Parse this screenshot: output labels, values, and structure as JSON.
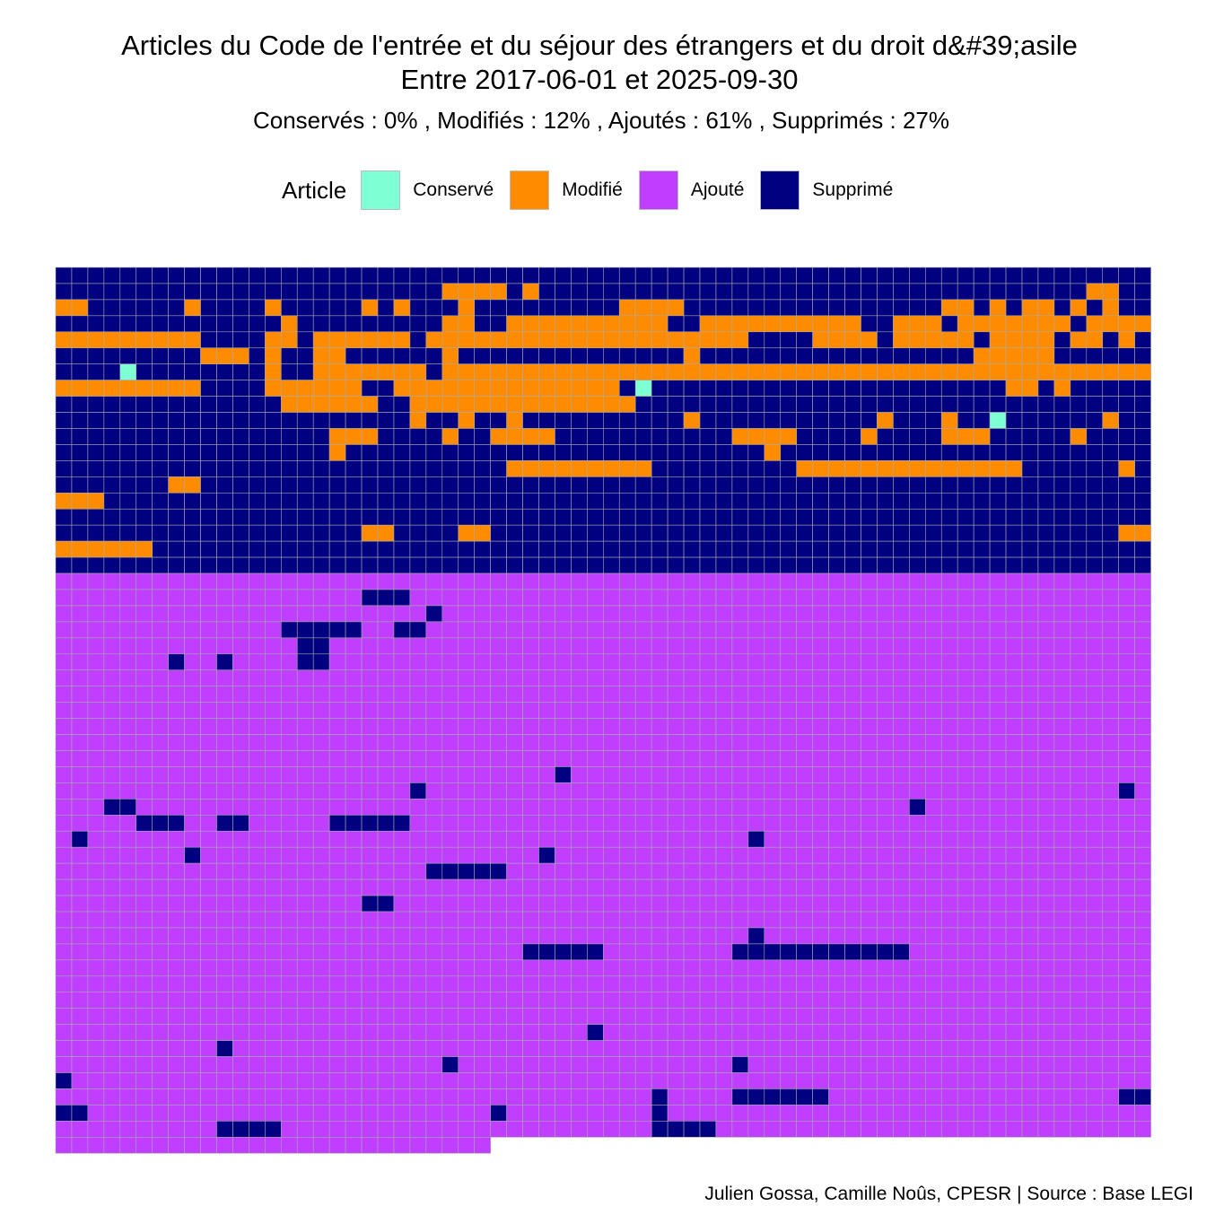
{
  "chart_data": {
    "type": "waffle",
    "title": "Articles du Code de l'entrée et du séjour des étrangers et du droit d&#39;asile",
    "title_line2": "Entre 2017-06-01 et 2025-09-30",
    "subtitle": "Conservés :  0% , Modifiés :  12% , Ajoutés :  61% , Supprimés :  27%",
    "legend_title": "Article",
    "legend_position": "top",
    "categories": [
      {
        "label": "Conservé",
        "code": "C",
        "color": "#7FFFD4",
        "percent": 0
      },
      {
        "label": "Modifié",
        "code": "M",
        "color": "#FF8C00",
        "percent": 12
      },
      {
        "label": "Ajouté",
        "code": "A",
        "color": "#BF3EFF",
        "percent": 61
      },
      {
        "label": "Supprimé",
        "code": "S",
        "color": "#000080",
        "percent": 27
      }
    ],
    "columns": 68,
    "row_codes": [
      "SSSSSSSSSSSSSSSSSSSSSSSSSSSSSSSSSSSSSSSSSSSSSSSSSSSSSSSSSSSSSSSSSSSS",
      "SSSSSSSSSSSSSSSSSSSSSSSSMMMMSMSSSSSSSSSSSSSSSSSSSSSSSSSSSSSSSSSSMMSS",
      "MMSSSSSSMSSSSMSSSSSMSMSSSMSSSSSSSSSMMMMSSSSSSSSSSSSSSSSMMSMSMMSMSMSS",
      "SSSSSSSSSSSSSSMSSSSSSSSSMMSSMMMMMMMMMMSSMMMMMMMMMMSSMMMSMMMMMMMSMMMM",
      "MMMMMMMMMSSSSMMSMMMMMMSMMMMMMMMMMMMMMMMMMMMSSSSMMMMSMMMMMSMMMMSMMSMS",
      "SSSSSSSSSMMMSMSSMMSSSSSSMSSSSSSSSSSSSSSMSSSSSSSSSSSSSSSSSMMMMMSSSSSS",
      "SSSSCSSSSSSSSMSSMMMMMMMSMMMMMMMMMMMMMMMMMMMMMMMMMMMMMMMMMMMMMMMMMMMM",
      "MMMMMMMMMSSSSMMMMMMSSMMMMMMMMMMMMMMSCSSSSSSSSSSSSSSSSSSSSSSMMSMSSSSS",
      "SSSSSSSSSSSSSSMMMMMMSSMMMMMMMMMMMMMMSSSSSSSSSSSSSSSSSSSSSSSSSSSSSSSS",
      "SSSSSSSSSSSSSSSSSSSSSSMSSMSSMSSSSSSSSSSMSSSSSSSSSSSMSSSMSSCSSSSSSMSS",
      "SSSSSSSSSSSSSSSSSMMMSSSSMSSMMMMSSSSSSSSSSSMMMMSSSSMSSSSMMMSSSSSMSSSS",
      "SSSSSSSSSSSSSSSSSMSSSSSSSSSSSSSSSSSSSSSSSSSSMSSSSSSSSSSSSSSSSSSSSSSS",
      "SSSSSSSSSSSSSSSSSSSSSSSSSSSSMMMMMMMMMSSSSSSSSSMMMMMMMMMMMMMMSSSSSSMS",
      "SSSSSSSMMSSSSSSSSSSSSSSSSSSSSSSSSSSSSSSSSSSSSSSSSSSSSSSSSSSSSSSSSSSS",
      "MMMSSSSSSSSSSSSSSSSSSSSSSSSSSSSSSSSSSSSSSSSSSSSSSSSSSSSSSSSSSSSSSSSS",
      "SSSSSSSSSSSSSSSSSSSSSSSSSSSSSSSSSSSSSSSSSSSSSSSSSSSSSSSSSSSSSSSSSSSS",
      "SSSSSSSSSSSSSSSSSSSMMSSSSMMSSSSSSSSSSSSSSSSSSSSSSSSSSSSSSSSSSSSSSSMM",
      "MMMMMMSSSSSSSSSSSSSSSSSSSSSSSSSSSSSSSSSSSSSSSSSSSSSSSSSSSSSSSSSSSSSS",
      "SSSSSSSSSSSSSSSSSSSSSSSSSSSSSSSSSSSSSSSSSSSSSSSSSSSSSSSSSSSSSSSSSSSS",
      "AAAAAAAAAAAAAAAAAAAAAAAAAAAAAAAAAAAAAAAAAAAAAAAAAAAAAAAAAAAAAAAAAAAA",
      "AAAAAAAAAAAAAAAAAAASSSAAAAAAAAAAAAAAAAAAAAAAAAAAAAAAAAAAAAAAAAAAAAAA",
      "AAAAAAAAAAAAAAAAAAAAAAASAAAAAAAAAAAAAAAAAAAAAAAAAAAAAAAAAAAAAAAAAAAA",
      "AAAAAAAAAAAAAASSSSSAASSAAAAAAAAAAAAAAAAAAAAAAAAAAAAAAAAAAAAAAAAAAAAA",
      "AAAAAAAAAAAAAAASSAAAAAAAAAAAAAAAAAAAAAAAAAAAAAAAAAAAAAAAAAAAAAAAAAAA",
      "AAAAAAASAASAAAASSAAAAAAAAAAAAAAAAAAAAAAAAAAAAAAAAAAAAAAAAAAAAAAAAAAA",
      "AAAAAAAAAAAAAAAAAAAAAAAAAAAAAAAAAAAAAAAAAAAAAAAAAAAAAAAAAAAAAAAAAAAA",
      "AAAAAAAAAAAAAAAAAAAAAAAAAAAAAAAAAAAAAAAAAAAAAAAAAAAAAAAAAAAAAAAAAAAA",
      "AAAAAAAAAAAAAAAAAAAAAAAAAAAAAAAAAAAAAAAAAAAAAAAAAAAAAAAAAAAAAAAAAAAA",
      "AAAAAAAAAAAAAAAAAAAAAAAAAAAAAAAAAAAAAAAAAAAAAAAAAAAAAAAAAAAAAAAAAAAA",
      "AAAAAAAAAAAAAAAAAAAAAAAAAAAAAAAAAAAAAAAAAAAAAAAAAAAAAAAAAAAAAAAAAAAA",
      "AAAAAAAAAAAAAAAAAAAAAAAAAAAAAAAAAAAAAAAAAAAAAAAAAAAAAAAAAAAAAAAAAAAA",
      "AAAAAAAAAAAAAAAAAAAAAAAAAAAAAAASAAAAAAAAAAAAAAAAAAAAAAAAAAAAAAAAAAAA",
      "AAAAAAAAAAAAAAAAAAAAAASAAAAAAAAAAAAAAAAAAAAAAAAAAAAAAAAAAAAAAAAAAASA",
      "AAASSAAAAAAAAAAAAAAAAAAAAAAAAAAAAAAAAAAAAAAAAAAAAAAAASAAAAAAAAAAAAAA",
      "AAAAASSSAASSAAAAASSSSSAAAAAAAAAAAAAAAAAAAAAAAAAAAAAAAAAAAAAAAAAAAAAA",
      "ASAAAAAAAAAAAAAAAAAAAAAAAAAAAAAAAAAAAAAAAAASAAAAAAAAAAAAAAAAAAAAAAAA",
      "AAAAAAAASAAAAAAAAAAAAAAAAAAAAASAAAAAAAAAAAAAAAAAAAAAAAAAAAAAAAAAAAAA",
      "AAAAAAAAAAAAAAAAAAAAAAASSSSSAAAAAAAAAAAAAAAAAAAAAAAAAAAAAAAAAAAAAAAA",
      "AAAAAAAAAAAAAAAAAAAAAAAAAAAAAAAAAAAAAAAAAAAAAAAAAAAAAAAAAAAAAAAAAAAA",
      "AAAAAAAAAAAAAAAAAAASSAAAAAAAAAAAAAAAAAAAAAAAAAAAAAAAAAAAAAAAAAAAAAAA",
      "AAAAAAAAAAAAAAAAAAAAAAAAAAAAAAAAAAAAAAAAAAAAAAAAAAAAAAAAAAAAAAAAAAAA",
      "AAAAAAAAAAAAAAAAAAAAAAAAAAAAAAAAAAAAAAAAAAASAAAAAAAAAAAAAAAAAAAAAAAA",
      "AAAAAAAAAAAAAAAAAAAAAAAAAAAAASSSSSAAAAAAAASSSSSSSSSSSAAAAAAAAAAAAAAA",
      "AAAAAAAAAAAAAAAAAAAAAAAAAAAAAAAAAAAAAAAAAAAAAAAAAAAAAAAAAAAAAAAAAAAA",
      "AAAAAAAAAAAAAAAAAAAAAAAAAAAAAAAAAAAAAAAAAAAAAAAAAAAAAAAAAAAAAAAAAAAA",
      "AAAAAAAAAAAAAAAAAAAAAAAAAAAAAAAAAAAAAAAAAAAAAAAAAAAAAAAAAAAAAAAAAAAA",
      "AAAAAAAAAAAAAAAAAAAAAAAAAAAAAAAAAAAAAAAAAAAAAAAAAAAAAAAAAAAAAAAAAAAA",
      "AAAAAAAAAAAAAAAAAAAAAAAAAAAAAAAAASAAAAAAAAAAAAAAAAAAAAAAAAAAAAAAAAAA",
      "AAAAAAAAAASAAAAAAAAAAAAAAAAAAAAAAAAAAAAAAAAAAAAAAAAAAAAAAAAAAAAAAAAA",
      "AAAAAAAAAAAAAAAAAAAAAAAASAAAAAAAAAAAAAAAAASAAAAAAAAAAAAAAAAAAAAAAAAA",
      "SAAAAAAAAAAAAAAAAAAAAAAAAAAAAAAAAAAAAAAAAAAAAAAAAAAAAAAAAAAAAAAAAAAA",
      "AAAAAAAAAAAAAAAAAAAAAAAAAAAAAAAAAAAAASAAAASSSSSSAAAAAAAAAAAAAAAAAASS",
      "SSAAAAAAAAAAAAAAAAAAAAAAAAASAAAAAAAAASAAAAAAAAAAAAAAAAAAAAAAAAAAAAAA",
      "AAAAAAAAAASSSSAAAAAAAAAAAAAAAAAAAAAAASSSSAAAAAAAAAAAAAAAAAAAAAAAAAAA",
      "AAAAAAAAAAAAAAAAAAAAAAAAAAA"
    ]
  },
  "caption": "Julien Gossa, Camille Noûs, CPESR  |  Source : Base LEGI"
}
